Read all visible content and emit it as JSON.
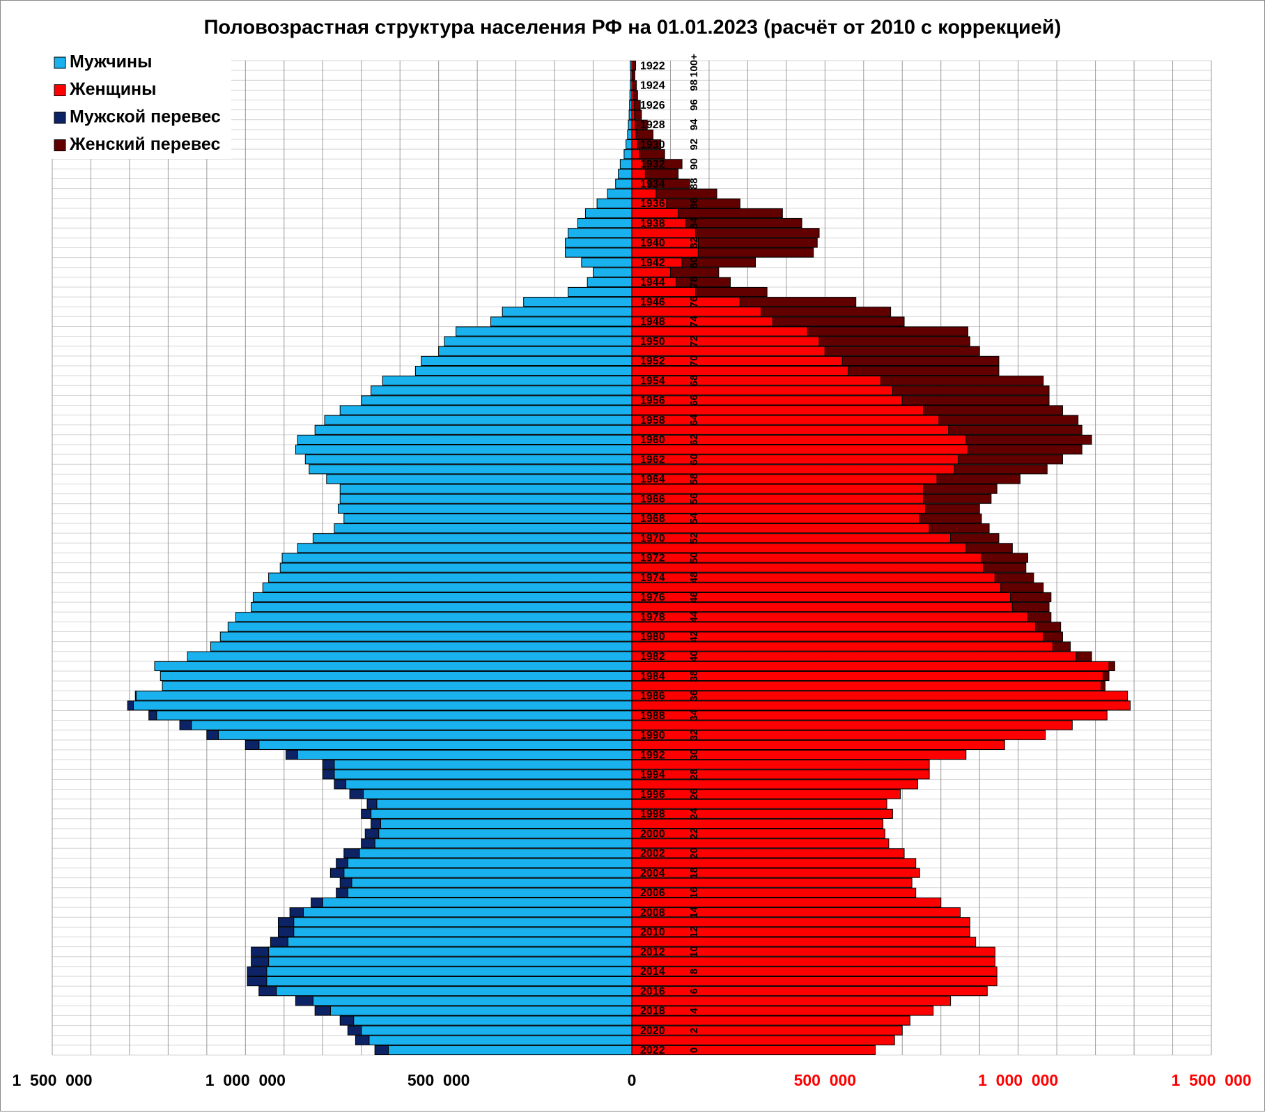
{
  "chart_data": {
    "type": "pyramid",
    "title": "Половозрастная структура населения РФ на 01.01.2023 (расчёт от 2010 с коррекцией)",
    "categories": [
      "1922",
      null,
      "1924",
      null,
      "1926",
      null,
      "1928",
      null,
      "1930",
      null,
      "1932",
      null,
      "1934",
      null,
      "1936",
      null,
      "1938",
      null,
      "1940",
      null,
      "1942",
      null,
      "1944",
      null,
      "1946",
      null,
      "1948",
      null,
      "1950",
      null,
      "1952",
      null,
      "1954",
      null,
      "1956",
      null,
      "1958",
      null,
      "1960",
      null,
      "1962",
      null,
      "1964",
      null,
      "1966",
      null,
      "1968",
      null,
      "1970",
      null,
      "1972",
      null,
      "1974",
      null,
      "1976",
      null,
      "1978",
      null,
      "1980",
      null,
      "1982",
      null,
      "1984",
      null,
      "1986",
      null,
      "1988",
      null,
      "1990",
      null,
      "1992",
      null,
      "1994",
      null,
      "1996",
      null,
      "1998",
      null,
      "2000",
      null,
      "2002",
      null,
      "2004",
      null,
      "2006",
      null,
      "2008",
      null,
      "2010",
      null,
      "2012",
      null,
      "2014",
      null,
      "2016",
      null,
      "2018",
      null,
      "2020",
      null,
      "2022"
    ],
    "age_labels": [
      "100+",
      null,
      "98",
      null,
      "96",
      null,
      "94",
      null,
      "92",
      null,
      "90",
      null,
      "88",
      null,
      "86",
      null,
      "84",
      null,
      "82",
      null,
      "80",
      null,
      "78",
      null,
      "76",
      null,
      "74",
      null,
      "72",
      null,
      "70",
      null,
      "68",
      null,
      "66",
      null,
      "64",
      null,
      "62",
      null,
      "60",
      null,
      "58",
      null,
      "56",
      null,
      "54",
      null,
      "52",
      null,
      "50",
      null,
      "48",
      null,
      "46",
      null,
      "44",
      null,
      "42",
      null,
      "40",
      null,
      "38",
      null,
      "36",
      null,
      "34",
      null,
      "32",
      null,
      "30",
      null,
      "28",
      null,
      "26",
      null,
      "24",
      null,
      "22",
      null,
      "20",
      null,
      "18",
      null,
      "16",
      null,
      "14",
      null,
      "12",
      null,
      "10",
      null,
      "8",
      null,
      "6",
      null,
      "4",
      null,
      "2",
      null,
      "0"
    ],
    "series": [
      {
        "name": "Мужчины",
        "color": "#1ab2ee",
        "side": "left",
        "values": [
          4000,
          3000,
          4000,
          5000,
          6000,
          7000,
          9000,
          11000,
          15000,
          20000,
          30000,
          35000,
          42000,
          63000,
          90000,
          120000,
          140000,
          165000,
          172000,
          172000,
          130000,
          100000,
          115000,
          165000,
          280000,
          335000,
          365000,
          455000,
          485000,
          500000,
          545000,
          560000,
          645000,
          675000,
          700000,
          755000,
          795000,
          820000,
          865000,
          870000,
          845000,
          835000,
          790000,
          755000,
          755000,
          760000,
          745000,
          770000,
          825000,
          865000,
          905000,
          910000,
          940000,
          955000,
          980000,
          985000,
          1025000,
          1045000,
          1065000,
          1090000,
          1150000,
          1235000,
          1220000,
          1215000,
          1285000,
          1305000,
          1250000,
          1170000,
          1100000,
          1000000,
          895000,
          800000,
          800000,
          770000,
          730000,
          685000,
          700000,
          675000,
          690000,
          700000,
          745000,
          765000,
          780000,
          755000,
          765000,
          830000,
          885000,
          915000,
          915000,
          935000,
          985000,
          985000,
          995000,
          995000,
          965000,
          870000,
          820000,
          755000,
          735000,
          715000,
          665000
        ]
      },
      {
        "name": "Женщины",
        "color": "#ff0000",
        "side": "right",
        "values": [
          10000,
          8000,
          12000,
          15000,
          22000,
          25000,
          40000,
          55000,
          75000,
          85000,
          130000,
          120000,
          150000,
          220000,
          280000,
          390000,
          440000,
          485000,
          480000,
          470000,
          320000,
          225000,
          255000,
          350000,
          580000,
          670000,
          705000,
          870000,
          875000,
          900000,
          950000,
          950000,
          1065000,
          1080000,
          1080000,
          1115000,
          1155000,
          1165000,
          1190000,
          1165000,
          1115000,
          1075000,
          1005000,
          945000,
          930000,
          900000,
          905000,
          925000,
          950000,
          985000,
          1025000,
          1020000,
          1040000,
          1065000,
          1085000,
          1080000,
          1085000,
          1110000,
          1115000,
          1135000,
          1190000,
          1250000,
          1235000,
          1225000,
          1283000,
          1290000,
          1230000,
          1140000,
          1070000,
          965000,
          865000,
          770000,
          770000,
          740000,
          695000,
          660000,
          675000,
          650000,
          655000,
          665000,
          705000,
          735000,
          745000,
          725000,
          735000,
          800000,
          850000,
          875000,
          875000,
          890000,
          940000,
          940000,
          945000,
          945000,
          920000,
          825000,
          780000,
          720000,
          700000,
          680000,
          630000
        ]
      }
    ],
    "excess": [
      {
        "name": "Мужской перевес",
        "color": "#0c2466"
      },
      {
        "name": "Женский перевес",
        "color": "#620000"
      }
    ],
    "xlim": [
      -1500000,
      1500000
    ],
    "xticks": [
      {
        "value": -1500000,
        "label": "1 500 000"
      },
      {
        "value": -1000000,
        "label": "1 000 000"
      },
      {
        "value": -500000,
        "label": "500 000"
      },
      0,
      {
        "value": 500000,
        "label": "500 000"
      },
      {
        "value": 1000000,
        "label": "1 000 000"
      },
      {
        "value": 1500000,
        "label": "1 500 000"
      }
    ],
    "right_tick_color": "#ff0000",
    "grid_lines": [
      -1500000,
      -1400000,
      -1300000,
      -1200000,
      -1100000,
      -1000000,
      -900000,
      -800000,
      -700000,
      -600000,
      -500000,
      -400000,
      -300000,
      -200000,
      -100000,
      0,
      100000,
      200000,
      300000,
      400000,
      500000,
      600000,
      700000,
      800000,
      900000,
      1000000,
      1100000,
      1200000,
      1300000,
      1400000,
      1500000
    ],
    "legend": "top-left"
  }
}
